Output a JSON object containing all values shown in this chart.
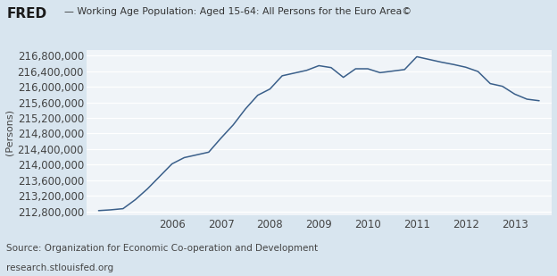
{
  "title": "Working Age Population: Aged 15-64: All Persons for the Euro Area©",
  "ylabel": "(Persons)",
  "source_line1": "Source: Organization for Economic Co-operation and Development",
  "source_line2": "research.stlouisfed.org",
  "line_color": "#3a5f8a",
  "background_color": "#d8e5ef",
  "plot_bg_color": "#f0f4f8",
  "grid_color": "#c8d4de",
  "yticks": [
    212800000,
    213200000,
    213600000,
    214000000,
    214400000,
    214800000,
    215200000,
    215600000,
    216000000,
    216400000,
    216800000
  ],
  "xtick_years": [
    2006,
    2007,
    2008,
    2009,
    2010,
    2011,
    2012,
    2013
  ],
  "x_data": [
    2004.5,
    2004.75,
    2005.0,
    2005.25,
    2005.5,
    2005.75,
    2006.0,
    2006.25,
    2006.5,
    2006.75,
    2007.0,
    2007.25,
    2007.5,
    2007.75,
    2008.0,
    2008.25,
    2008.5,
    2008.75,
    2009.0,
    2009.25,
    2009.5,
    2009.75,
    2010.0,
    2010.25,
    2010.5,
    2010.75,
    2011.0,
    2011.25,
    2011.5,
    2011.75,
    2012.0,
    2012.25,
    2012.5,
    2012.75,
    2013.0,
    2013.25,
    2013.5
  ],
  "y_data": [
    212820000,
    212840000,
    212870000,
    213100000,
    213380000,
    213700000,
    214020000,
    214180000,
    214250000,
    214320000,
    214680000,
    215020000,
    215430000,
    215780000,
    215940000,
    216280000,
    216350000,
    216420000,
    216540000,
    216490000,
    216240000,
    216460000,
    216460000,
    216360000,
    216400000,
    216440000,
    216770000,
    216700000,
    216630000,
    216570000,
    216500000,
    216390000,
    216080000,
    216010000,
    215810000,
    215680000,
    215640000
  ],
  "xlim": [
    2004.25,
    2013.75
  ],
  "ylim": [
    212700000,
    216950000
  ],
  "tick_fontsize": 8.5,
  "source_fontsize": 7.5
}
